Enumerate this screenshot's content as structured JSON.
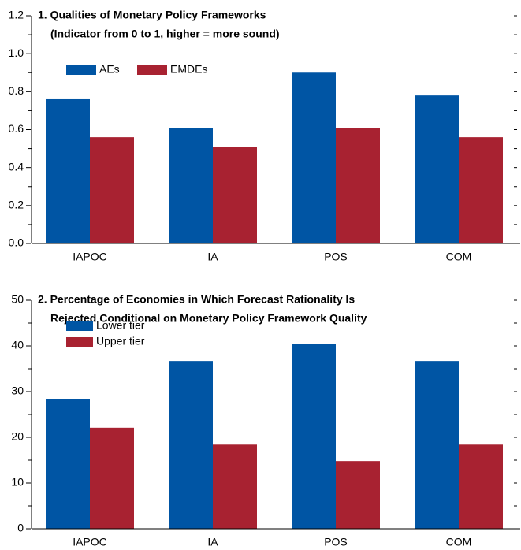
{
  "chart_data": [
    {
      "type": "bar",
      "title": [
        "1. Qualities of Monetary Policy Frameworks",
        "(Indicator from 0 to 1, higher = more sound)"
      ],
      "categories": [
        "IAPOC",
        "IA",
        "POS",
        "COM"
      ],
      "series": [
        {
          "name": "AEs",
          "color": "#0055a4",
          "values": [
            0.76,
            0.61,
            0.9,
            0.78
          ]
        },
        {
          "name": "EMDEs",
          "color": "#a82231",
          "values": [
            0.56,
            0.51,
            0.61,
            0.56
          ]
        }
      ],
      "ylim": [
        0,
        1.2
      ],
      "yticks": [
        {
          "value": 0,
          "label": "0.0"
        },
        0.2,
        0.4,
        0.6,
        0.8,
        {
          "value": 1,
          "label": "1.0"
        },
        1.2
      ],
      "minor_yticks": [
        0.1,
        0.3,
        0.5,
        0.7,
        0.9,
        1.1
      ],
      "legend_layout": "row"
    },
    {
      "type": "bar",
      "title": [
        "2. Percentage of Economies in Which Forecast Rationality Is",
        "Rejected Conditional on Monetary Policy Framework Quality"
      ],
      "categories": [
        "IAPOC",
        "IA",
        "POS",
        "COM"
      ],
      "series": [
        {
          "name": "Lower tier",
          "color": "#0055a4",
          "values": [
            28.4,
            36.7,
            40.4,
            36.7
          ]
        },
        {
          "name": "Upper tier",
          "color": "#a82231",
          "values": [
            22.1,
            18.4,
            14.8,
            18.4
          ]
        }
      ],
      "ylim": [
        0,
        50
      ],
      "yticks": [
        0,
        10,
        20,
        30,
        40,
        50
      ],
      "minor_yticks": [
        5,
        15,
        25,
        35,
        45
      ],
      "legend_layout": "column"
    }
  ]
}
